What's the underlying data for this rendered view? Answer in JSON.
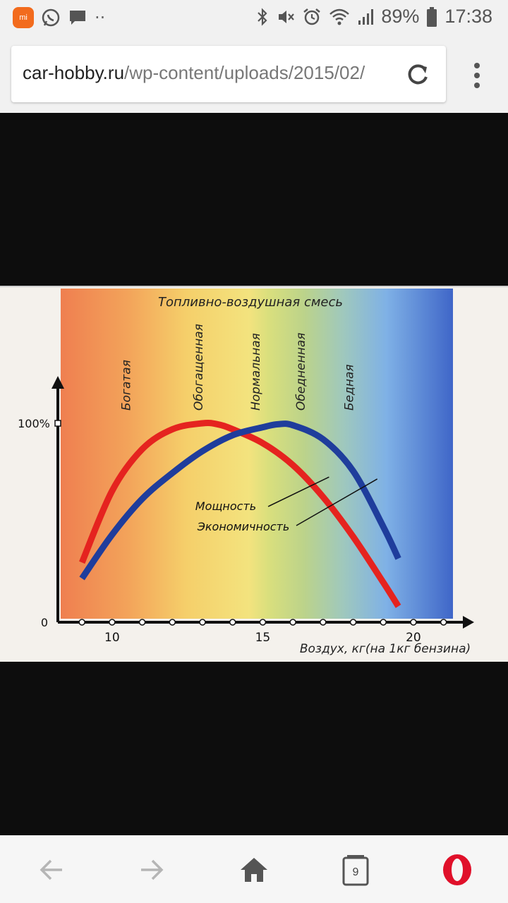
{
  "status_bar": {
    "battery": "89%",
    "time": "17:38",
    "app_icon": "mi-icon",
    "icons_left": [
      "mi-icon",
      "whatsapp-icon",
      "message-icon",
      "more-notifications-icon"
    ],
    "icons_right": [
      "bluetooth-icon",
      "mute-icon",
      "alarm-icon",
      "wifi-icon",
      "signal-icon",
      "battery-icon"
    ]
  },
  "address_bar": {
    "host": "car-hobby.ru",
    "path": "/wp-content/uploads/2015/02/"
  },
  "chart": {
    "title": "Топливно-воздушная смесь",
    "zones": [
      "Богатая",
      "Обогащенная",
      "Нормальная",
      "Обедненная",
      "Бедная"
    ],
    "y_tick_top": "100%",
    "y_tick_bottom": "0",
    "x_ticks": [
      "10",
      "15",
      "20"
    ],
    "xlabel": "Воздух, кг(на 1кг бензина)",
    "legend_power": "Мощность",
    "legend_economy": "Экономичность",
    "colors": {
      "power": "#e5231f",
      "economy": "#1f3d9c"
    }
  },
  "chart_data": {
    "type": "line",
    "title": "Топливно-воздушная смесь",
    "xlabel": "Воздух, кг(на 1кг бензина)",
    "ylabel": "",
    "xlim": [
      8.2,
      21.5
    ],
    "ylim": [
      0,
      100
    ],
    "x_ticks": [
      10,
      15,
      20
    ],
    "y_ticks": [
      "0",
      "100%"
    ],
    "series": [
      {
        "name": "Мощность",
        "color": "#e5231f",
        "x": [
          9.0,
          10.0,
          11.0,
          12.0,
          13.0,
          13.5,
          14.0,
          15.0,
          16.0,
          17.0,
          18.0,
          19.0,
          19.5
        ],
        "y": [
          30,
          66,
          87,
          97,
          100,
          99.5,
          97,
          90,
          79,
          63,
          43,
          20,
          8
        ]
      },
      {
        "name": "Экономичность",
        "color": "#1f3d9c",
        "x": [
          9.0,
          10.0,
          11.0,
          12.0,
          13.0,
          14.0,
          15.0,
          15.5,
          16.0,
          17.0,
          18.0,
          19.0,
          19.5
        ],
        "y": [
          22,
          44,
          62,
          75,
          86,
          94,
          98,
          99.5,
          99,
          92,
          76,
          48,
          32
        ]
      }
    ],
    "zones": [
      "Богатая",
      "Обогащенная",
      "Нормальная",
      "Обедненная",
      "Бедная"
    ],
    "legend_position": "center-right"
  },
  "bottom_nav": {
    "tabs_count": "9",
    "icons": [
      "back-arrow-icon",
      "forward-arrow-icon",
      "home-icon",
      "tabs-icon",
      "opera-logo-icon"
    ]
  }
}
